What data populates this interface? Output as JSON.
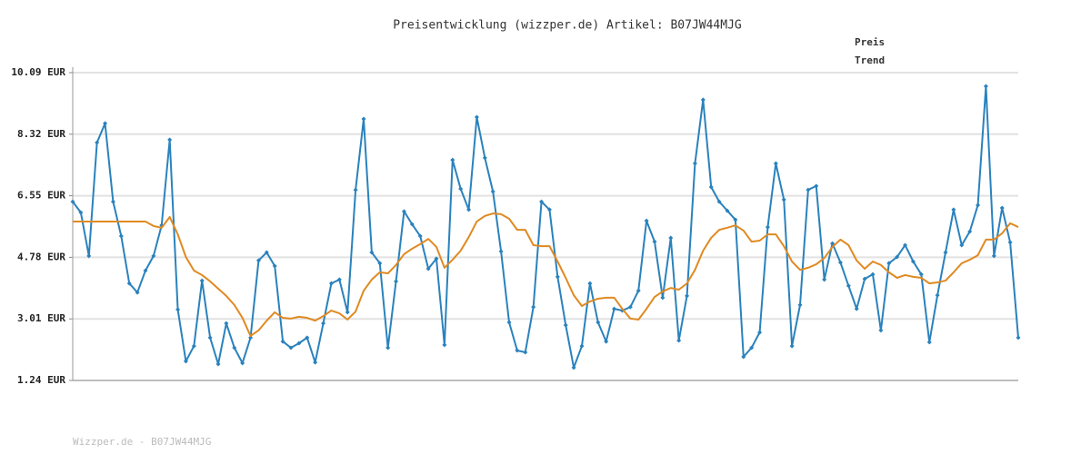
{
  "chart_data": {
    "type": "line",
    "title": "Preisentwicklung (wizzper.de) Artikel: B07JW44MJG",
    "ylim": [
      1.24,
      10.09
    ],
    "yticks": [
      {
        "value": 1.24,
        "label": "1.24 EUR"
      },
      {
        "value": 3.01,
        "label": "3.01 EUR"
      },
      {
        "value": 4.78,
        "label": "4.78 EUR"
      },
      {
        "value": 6.55,
        "label": "6.55 EUR"
      },
      {
        "value": 8.32,
        "label": "8.32 EUR"
      },
      {
        "value": 10.09,
        "label": "10.09 EUR"
      }
    ],
    "grid": true,
    "legend": "top-right",
    "series": [
      {
        "name": "Preis",
        "color": "#2a82bd",
        "markers": true,
        "values": [
          6.38,
          6.07,
          4.82,
          8.08,
          8.63,
          6.38,
          5.39,
          4.03,
          3.77,
          4.4,
          4.82,
          5.7,
          8.16,
          3.28,
          1.79,
          2.23,
          4.11,
          2.47,
          1.71,
          2.88,
          2.18,
          1.74,
          2.47,
          4.69,
          4.92,
          4.53,
          2.36,
          2.18,
          2.31,
          2.47,
          1.76,
          2.88,
          4.03,
          4.14,
          3.2,
          6.72,
          8.76,
          4.92,
          4.61,
          2.18,
          4.09,
          6.1,
          5.73,
          5.39,
          4.45,
          4.74,
          2.26,
          7.58,
          6.75,
          6.15,
          8.81,
          7.64,
          6.67,
          4.95,
          2.91,
          2.1,
          2.05,
          3.35,
          6.38,
          6.15,
          4.22,
          2.83,
          1.61,
          2.23,
          4.03,
          2.91,
          2.36,
          3.3,
          3.25,
          3.35,
          3.82,
          5.83,
          5.23,
          3.62,
          5.34,
          2.39,
          3.67,
          7.48,
          9.31,
          6.8,
          6.38,
          6.12,
          5.86,
          1.92,
          2.18,
          2.62,
          5.65,
          7.48,
          6.44,
          2.23,
          3.41,
          6.72,
          6.83,
          4.14,
          5.18,
          4.63,
          3.96,
          3.3,
          4.16,
          4.29,
          2.68,
          4.61,
          4.79,
          5.13,
          4.66,
          4.29,
          2.34,
          3.69,
          4.92,
          6.15,
          5.13,
          5.52,
          6.28,
          9.7,
          4.82,
          6.2,
          5.21,
          2.47
        ]
      },
      {
        "name": "Trend",
        "color": "#e08a22",
        "markers": false,
        "values": [
          5.81,
          5.81,
          5.81,
          5.81,
          5.81,
          5.81,
          5.81,
          5.81,
          5.81,
          5.81,
          5.68,
          5.63,
          5.94,
          5.44,
          4.79,
          4.4,
          4.27,
          4.09,
          3.88,
          3.67,
          3.41,
          3.04,
          2.52,
          2.68,
          2.96,
          3.2,
          3.04,
          3.02,
          3.07,
          3.04,
          2.96,
          3.09,
          3.25,
          3.17,
          2.99,
          3.22,
          3.82,
          4.14,
          4.35,
          4.32,
          4.56,
          4.87,
          5.03,
          5.16,
          5.31,
          5.08,
          4.48,
          4.71,
          4.97,
          5.36,
          5.81,
          5.97,
          6.04,
          6.02,
          5.89,
          5.57,
          5.57,
          5.13,
          5.1,
          5.1,
          4.66,
          4.19,
          3.69,
          3.38,
          3.51,
          3.59,
          3.62,
          3.62,
          3.3,
          3.02,
          2.99,
          3.3,
          3.64,
          3.8,
          3.9,
          3.85,
          4.03,
          4.42,
          4.97,
          5.34,
          5.57,
          5.63,
          5.7,
          5.55,
          5.23,
          5.26,
          5.44,
          5.44,
          5.1,
          4.66,
          4.42,
          4.48,
          4.58,
          4.76,
          5.08,
          5.29,
          5.13,
          4.69,
          4.45,
          4.66,
          4.56,
          4.35,
          4.19,
          4.27,
          4.22,
          4.19,
          4.03,
          4.06,
          4.11,
          4.35,
          4.61,
          4.71,
          4.84,
          5.29,
          5.29,
          5.47,
          5.76,
          5.65
        ]
      }
    ]
  },
  "footer": "Wizzper.de - B07JW44MJG"
}
